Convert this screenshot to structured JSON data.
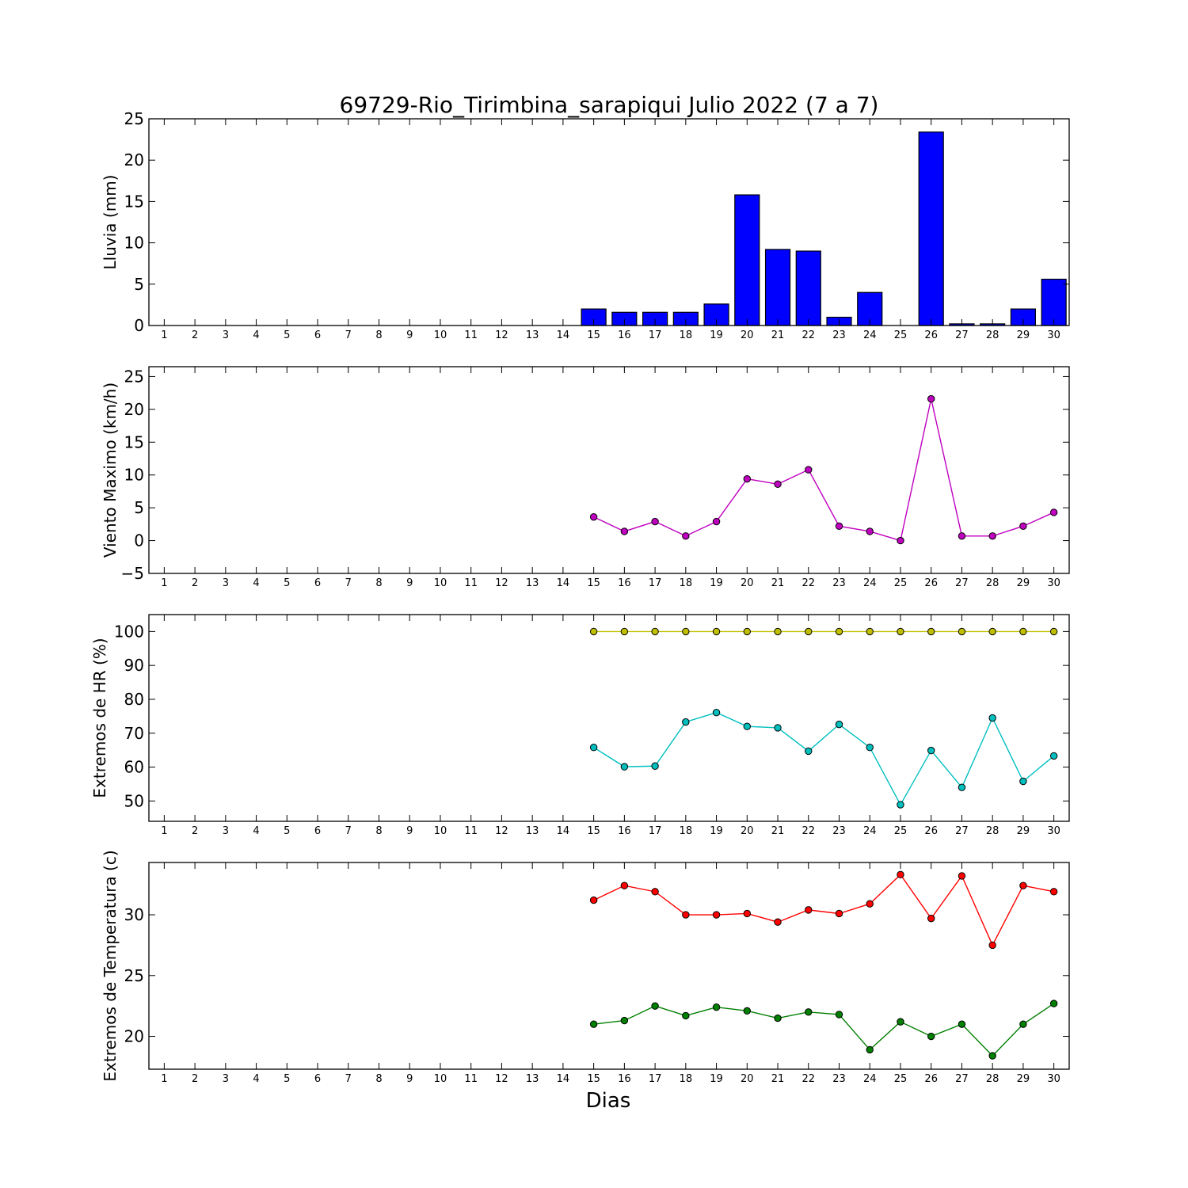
{
  "figure": {
    "title": "69729-Rio_Tirimbina_sarapiqui Julio 2022  (7 a 7)",
    "xlabel": "Dias"
  },
  "chart_data": [
    {
      "type": "bar",
      "ylabel": "Lluvia (mm)",
      "ylim": [
        0,
        25
      ],
      "yticks": [
        0,
        5,
        10,
        15,
        20,
        25
      ],
      "categories": [
        "1",
        "2",
        "3",
        "4",
        "5",
        "6",
        "7",
        "8",
        "9",
        "10",
        "11",
        "12",
        "13",
        "14",
        "15",
        "16",
        "17",
        "18",
        "19",
        "20",
        "21",
        "22",
        "23",
        "24",
        "25",
        "26",
        "27",
        "28",
        "29",
        "30"
      ],
      "series": [
        {
          "color": "#0000ff",
          "values": [
            null,
            null,
            null,
            null,
            null,
            null,
            null,
            null,
            null,
            null,
            null,
            null,
            null,
            null,
            2.0,
            1.6,
            1.6,
            1.6,
            2.6,
            15.8,
            9.2,
            9.0,
            1.0,
            4.0,
            0.0,
            23.4,
            0.2,
            0.2,
            2.0,
            5.6
          ]
        }
      ]
    },
    {
      "type": "line",
      "ylabel": "Viento Maximo (km/h)",
      "ylim": [
        -5,
        26.5
      ],
      "yticks": [
        -5,
        0,
        5,
        10,
        15,
        20,
        25
      ],
      "categories": [
        "1",
        "2",
        "3",
        "4",
        "5",
        "6",
        "7",
        "8",
        "9",
        "10",
        "11",
        "12",
        "13",
        "14",
        "15",
        "16",
        "17",
        "18",
        "19",
        "20",
        "21",
        "22",
        "23",
        "24",
        "25",
        "26",
        "27",
        "28",
        "29",
        "30"
      ],
      "series": [
        {
          "color": "#bf00bf",
          "values": [
            null,
            null,
            null,
            null,
            null,
            null,
            null,
            null,
            null,
            null,
            null,
            null,
            null,
            null,
            3.6,
            1.4,
            2.9,
            0.7,
            2.9,
            9.4,
            8.6,
            10.8,
            2.2,
            1.4,
            0.0,
            21.6,
            0.7,
            0.7,
            2.2,
            4.3
          ]
        }
      ]
    },
    {
      "type": "line",
      "ylabel": "Extremos de HR (%)",
      "ylim": [
        44,
        105
      ],
      "yticks": [
        50,
        60,
        70,
        80,
        90,
        100
      ],
      "categories": [
        "1",
        "2",
        "3",
        "4",
        "5",
        "6",
        "7",
        "8",
        "9",
        "10",
        "11",
        "12",
        "13",
        "14",
        "15",
        "16",
        "17",
        "18",
        "19",
        "20",
        "21",
        "22",
        "23",
        "24",
        "25",
        "26",
        "27",
        "28",
        "29",
        "30"
      ],
      "series": [
        {
          "color": "#bfbf00",
          "values": [
            null,
            null,
            null,
            null,
            null,
            null,
            null,
            null,
            null,
            null,
            null,
            null,
            null,
            null,
            100,
            100,
            100,
            100,
            100,
            100,
            100,
            100,
            100,
            100,
            100,
            100,
            100,
            100,
            100,
            100
          ]
        },
        {
          "color": "#00bfbf",
          "values": [
            null,
            null,
            null,
            null,
            null,
            null,
            null,
            null,
            null,
            null,
            null,
            null,
            null,
            null,
            65.8,
            60.1,
            60.3,
            73.3,
            76.1,
            72.0,
            71.6,
            64.7,
            72.6,
            65.8,
            48.9,
            64.9,
            54.0,
            74.5,
            55.8,
            63.3
          ]
        }
      ]
    },
    {
      "type": "line",
      "ylabel": "Extremos de Temperatura (c)",
      "ylim": [
        17.3,
        34.3
      ],
      "yticks": [
        20,
        25,
        30
      ],
      "categories": [
        "1",
        "2",
        "3",
        "4",
        "5",
        "6",
        "7",
        "8",
        "9",
        "10",
        "11",
        "12",
        "13",
        "14",
        "15",
        "16",
        "17",
        "18",
        "19",
        "20",
        "21",
        "22",
        "23",
        "24",
        "25",
        "26",
        "27",
        "28",
        "29",
        "30"
      ],
      "series": [
        {
          "color": "#ff0000",
          "values": [
            null,
            null,
            null,
            null,
            null,
            null,
            null,
            null,
            null,
            null,
            null,
            null,
            null,
            null,
            31.2,
            32.4,
            31.9,
            30.0,
            30.0,
            30.1,
            29.4,
            30.4,
            30.1,
            30.9,
            33.3,
            29.7,
            33.2,
            27.5,
            32.4,
            31.9
          ]
        },
        {
          "color": "#007f00",
          "values": [
            null,
            null,
            null,
            null,
            null,
            null,
            null,
            null,
            null,
            null,
            null,
            null,
            null,
            null,
            21.0,
            21.3,
            22.5,
            21.7,
            22.4,
            22.1,
            21.5,
            22.0,
            21.8,
            18.9,
            21.2,
            20.0,
            21.0,
            18.4,
            21.0,
            22.7
          ]
        }
      ]
    }
  ]
}
